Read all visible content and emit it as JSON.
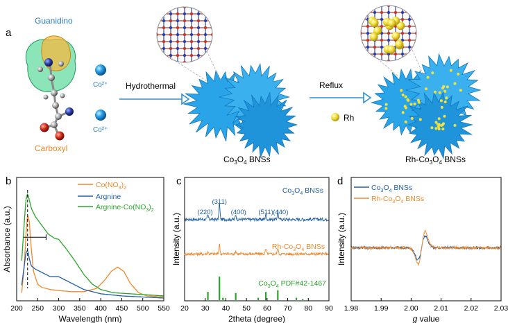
{
  "colors": {
    "orange": "#f0892a",
    "blue": "#1f5fa8",
    "green": "#2aa52a",
    "arrow": "#2a8fd6",
    "blob": "#2aa4e8",
    "rh": "#f4e03a",
    "bonds": "#c0392b",
    "label_blue": "#2c7fc0"
  },
  "panel_a": {
    "letter": "a",
    "guanidino": "Guanidino",
    "carboxyl": "Carboxyl",
    "co_ion_1": "Co²⁺",
    "co_ion_2": "Co²⁺",
    "step1": "Hydrothermal",
    "step2": "Reflux",
    "rh_label": "Rh",
    "product1_pre": "Co",
    "product1_sub1": "3",
    "product1_mid": "O",
    "product1_sub2": "4",
    "product1_post": " BNSs",
    "product2_pre": "Rh-Co",
    "product2_sub1": "3",
    "product2_mid": "O",
    "product2_sub2": "4",
    "product2_post": " BNSs"
  },
  "chart_data": [
    {
      "panel": "b",
      "type": "line",
      "xlabel": "Wavelength (nm)",
      "ylabel": "Absorbance (a.u.)",
      "xlim": [
        200,
        550
      ],
      "xticks": [
        "200",
        "250",
        "300",
        "350",
        "400",
        "450",
        "500",
        "550"
      ],
      "series": [
        {
          "name": "Co(NO3)2",
          "legend_pre": "Co(NO",
          "legend_sub1": "3",
          "legend_post": ")",
          "legend_sub2": "2",
          "color": "#f0892a",
          "x": [
            212,
            218,
            222,
            226,
            230,
            234,
            240,
            250,
            260,
            280,
            300,
            330,
            360,
            390,
            410,
            425,
            440,
            455,
            470,
            490,
            510,
            550
          ],
          "y": [
            0.05,
            0.3,
            0.58,
            0.78,
            0.72,
            0.5,
            0.25,
            0.13,
            0.1,
            0.08,
            0.07,
            0.06,
            0.06,
            0.09,
            0.17,
            0.25,
            0.29,
            0.25,
            0.14,
            0.05,
            0.02,
            0.01
          ]
        },
        {
          "name": "Argnine",
          "legend": "Argnine",
          "color": "#1f5fa8",
          "x": [
            212,
            218,
            222,
            226,
            230,
            235,
            245,
            260,
            280,
            300,
            330,
            360,
            400,
            450,
            500,
            550
          ],
          "y": [
            0.12,
            0.3,
            0.42,
            0.45,
            0.37,
            0.3,
            0.27,
            0.24,
            0.2,
            0.2,
            0.14,
            0.08,
            0.04,
            0.02,
            0.01,
            0.0
          ]
        },
        {
          "name": "Argnine-Co(NO3)2",
          "legend_pre": "Argnine-Co(NO",
          "legend_sub1": "3",
          "legend_post": ")",
          "legend_sub2": "2",
          "color": "#2aa52a",
          "x": [
            212,
            218,
            222,
            226,
            230,
            235,
            245,
            260,
            275,
            290,
            300,
            320,
            340,
            360,
            380,
            400,
            430,
            470,
            510,
            550
          ],
          "y": [
            0.35,
            0.7,
            0.92,
            0.98,
            0.92,
            0.84,
            0.76,
            0.68,
            0.6,
            0.56,
            0.55,
            0.45,
            0.34,
            0.22,
            0.13,
            0.08,
            0.05,
            0.04,
            0.03,
            0.02
          ]
        }
      ],
      "dashed_line_x": 226,
      "span_line": {
        "x_start": 226,
        "x_end": 270,
        "y": 0.57
      }
    },
    {
      "panel": "c",
      "type": "line",
      "xlabel": "2theta (degree)",
      "ylabel": "Intensity (a.u.)",
      "xlim": [
        20,
        90
      ],
      "xticks": [
        "20",
        "30",
        "40",
        "50",
        "60",
        "70",
        "80",
        "90"
      ],
      "series": [
        {
          "name": "Co3O4 BNSs",
          "color": "#1f5fa8",
          "baseline": 0.66,
          "peaks": [
            [
              31.3,
              0.035
            ],
            [
              36.9,
              0.13
            ],
            [
              44.8,
              0.04
            ],
            [
              59.4,
              0.05
            ],
            [
              65.2,
              0.07
            ]
          ],
          "legend_pre": "Co",
          "legend_sub1": "3",
          "legend_mid": "O",
          "legend_sub2": "4",
          "legend_post": " BNSs"
        },
        {
          "name": "Rh-Co3O4 BNSs",
          "color": "#f0892a",
          "baseline": 0.38,
          "peaks": [
            [
              31.3,
              0.02
            ],
            [
              36.9,
              0.08
            ],
            [
              44.8,
              0.025
            ],
            [
              59.4,
              0.04
            ],
            [
              65.2,
              0.05
            ]
          ],
          "legend_pre": "Rh-Co",
          "legend_sub1": "3",
          "legend_mid": "O",
          "legend_sub2": "4",
          "legend_post": " BNSs"
        }
      ],
      "reference": {
        "color": "#2aa52a",
        "legend_pre": "Co",
        "legend_sub1": "3",
        "legend_mid": "O",
        "legend_sub2": "4",
        "legend_post": " PDF#42-1467",
        "bars": [
          [
            19.0,
            0.15
          ],
          [
            31.3,
            0.35
          ],
          [
            36.9,
            1.0
          ],
          [
            38.6,
            0.1
          ],
          [
            44.8,
            0.3
          ],
          [
            55.7,
            0.1
          ],
          [
            59.4,
            0.35
          ],
          [
            65.2,
            0.42
          ],
          [
            74.2,
            0.1
          ],
          [
            77.3,
            0.05
          ]
        ]
      },
      "peak_labels": [
        {
          "text": "(220)",
          "x": 31.3
        },
        {
          "text": "(311)",
          "x": 36.9
        },
        {
          "text": "(400)",
          "x": 44.8
        },
        {
          "text": "(511)",
          "x": 59.4
        },
        {
          "text": "(440)",
          "x": 65.2
        }
      ]
    },
    {
      "panel": "d",
      "type": "line",
      "xlabel_italic": "g",
      "xlabel_rest": " value",
      "ylabel": "Intensity (a.u.)",
      "xlim": [
        1.98,
        2.03
      ],
      "xticks": [
        "1.98",
        "1.99",
        "2.00",
        "2.01",
        "2.02",
        "2.03"
      ],
      "series": [
        {
          "name": "Co3O4 BNSs",
          "color": "#1f5fa8",
          "amp": 0.75,
          "legend_pre": "Co",
          "legend_sub1": "3",
          "legend_mid": "O",
          "legend_sub2": "4",
          "legend_post": " BNSs"
        },
        {
          "name": "Rh-Co3O4 BNSs",
          "color": "#f0892a",
          "amp": 1.0,
          "legend_pre": "Rh-Co",
          "legend_sub1": "3",
          "legend_mid": "O",
          "legend_sub2": "4",
          "legend_post": " BNSs"
        }
      ],
      "center_g": 2.0035
    }
  ],
  "panel_letters": {
    "b": "b",
    "c": "c",
    "d": "d"
  }
}
